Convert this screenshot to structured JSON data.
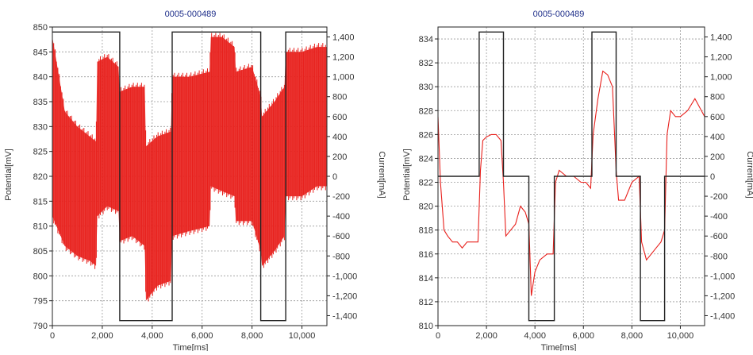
{
  "chart_data": [
    {
      "type": "line",
      "title": "0005-000489",
      "xlabel": "Time[ms]",
      "ylabel": "Potential[mV]",
      "y2label": "Current[mA]",
      "xlim": [
        0,
        11000
      ],
      "ylim": [
        790,
        850
      ],
      "y2lim": [
        -1500,
        1500
      ],
      "x_ticks": [
        0,
        2000,
        4000,
        6000,
        8000,
        10000
      ],
      "x_tick_labels": [
        "0",
        "2,000",
        "4,000",
        "6,000",
        "8,000",
        "10,000"
      ],
      "y_ticks": [
        790,
        795,
        800,
        805,
        810,
        815,
        820,
        825,
        830,
        835,
        840,
        845,
        850
      ],
      "y_tick_labels": [
        "790",
        "795",
        "800",
        "805",
        "810",
        "815",
        "820",
        "825",
        "830",
        "835",
        "840",
        "845",
        "850"
      ],
      "y2_ticks": [
        -1400,
        -1200,
        -1000,
        -800,
        -600,
        -400,
        -200,
        0,
        200,
        400,
        600,
        800,
        1000,
        1200,
        1400
      ],
      "y2_tick_labels": [
        "-1,400",
        "-1,200",
        "-1,000",
        "-800",
        "-600",
        "-400",
        "-200",
        "0",
        "200",
        "400",
        "600",
        "800",
        "1,000",
        "1,200",
        "1,400"
      ],
      "grid": true,
      "colors": {
        "potential": "#e8201c",
        "current": "#222222"
      },
      "series": [
        {
          "axis": "left",
          "color": "#e8201c",
          "style": "oscillating band",
          "x": [
            0,
            500,
            1000,
            1500,
            1750,
            1800,
            2200,
            2650,
            2700,
            3200,
            3700,
            3750,
            4200,
            4750,
            4800,
            5500,
            6300,
            6350,
            6800,
            7300,
            7350,
            8000,
            8350,
            8400,
            8900,
            9300,
            9350,
            10000,
            10600,
            11000
          ],
          "upper": [
            848,
            833,
            830,
            828,
            827,
            843,
            844,
            842,
            837,
            838,
            838,
            826,
            828,
            829,
            840,
            840,
            841,
            848,
            848,
            846,
            841,
            842,
            836,
            832,
            835,
            838,
            845,
            845,
            846,
            846
          ],
          "lower": [
            812,
            806,
            804,
            803,
            802,
            812,
            814,
            813,
            807,
            808,
            806,
            795,
            798,
            799,
            808,
            809,
            810,
            818,
            817,
            816,
            811,
            811,
            805,
            802,
            805,
            808,
            816,
            816,
            818,
            818
          ]
        },
        {
          "axis": "right",
          "color": "#222222",
          "x": [
            0,
            1700,
            1700,
            2700,
            2700,
            3750,
            3750,
            4800,
            4800,
            6350,
            6350,
            7350,
            7350,
            8350,
            8350,
            9350,
            9350,
            11000
          ],
          "y": [
            1450,
            1450,
            1450,
            1450,
            -1450,
            -1450,
            -1450,
            -1450,
            1450,
            1450,
            1450,
            1450,
            1450,
            1450,
            -1450,
            -1450,
            1450,
            1450
          ]
        }
      ]
    },
    {
      "type": "line",
      "title": "0005-000489",
      "xlabel": "Time[ms]",
      "ylabel": "Potential[mV]",
      "y2label": "Current[mA]",
      "xlim": [
        0,
        11000
      ],
      "ylim": [
        810,
        835
      ],
      "y2lim": [
        -1500,
        1500
      ],
      "x_ticks": [
        0,
        2000,
        4000,
        6000,
        8000,
        10000
      ],
      "x_tick_labels": [
        "0",
        "2,000",
        "4,000",
        "6,000",
        "8,000",
        "10,000"
      ],
      "y_ticks": [
        810,
        812,
        814,
        816,
        818,
        820,
        822,
        824,
        826,
        828,
        830,
        832,
        834
      ],
      "y_tick_labels": [
        "810",
        "812",
        "814",
        "816",
        "818",
        "820",
        "822",
        "824",
        "826",
        "828",
        "830",
        "832",
        "834"
      ],
      "y2_ticks": [
        -1400,
        -1200,
        -1000,
        -800,
        -600,
        -400,
        -200,
        0,
        200,
        400,
        600,
        800,
        1000,
        1200,
        1400
      ],
      "y2_tick_labels": [
        "-1,400",
        "-1,200",
        "-1,000",
        "-800",
        "-600",
        "-400",
        "-200",
        "0",
        "200",
        "400",
        "600",
        "800",
        "1,000",
        "1,200",
        "1,400"
      ],
      "grid": true,
      "colors": {
        "potential": "#e8201c",
        "current": "#222222"
      },
      "series": [
        {
          "axis": "left",
          "color": "#e8201c",
          "x": [
            0,
            100,
            250,
            400,
            600,
            800,
            1000,
            1200,
            1400,
            1650,
            1750,
            1850,
            2000,
            2200,
            2400,
            2600,
            2700,
            2800,
            3000,
            3200,
            3400,
            3600,
            3750,
            3850,
            4000,
            4200,
            4500,
            4750,
            4850,
            5000,
            5300,
            5600,
            5900,
            6100,
            6300,
            6400,
            6600,
            6800,
            7000,
            7200,
            7350,
            7450,
            7700,
            8000,
            8300,
            8400,
            8600,
            8800,
            9000,
            9200,
            9350,
            9450,
            9600,
            9800,
            10000,
            10300,
            10600,
            11000
          ],
          "y": [
            827.5,
            822,
            818,
            817.5,
            817,
            817,
            816.5,
            817,
            817,
            817,
            823,
            825.5,
            825.8,
            826,
            826,
            825.5,
            822,
            817.5,
            818,
            818.5,
            820,
            819.5,
            818.5,
            812.5,
            814.5,
            815.5,
            816,
            816,
            822,
            823,
            822.5,
            822.5,
            822,
            822,
            821.5,
            826,
            829,
            831.3,
            831,
            830,
            823,
            820.5,
            820.5,
            822,
            822.5,
            817,
            815.5,
            816,
            816.5,
            817,
            818,
            826,
            828,
            827.5,
            827.5,
            828,
            829,
            827.5
          ]
        },
        {
          "axis": "right",
          "color": "#222222",
          "x": [
            0,
            1700,
            1700,
            2700,
            2700,
            3750,
            3750,
            4800,
            4800,
            6350,
            6350,
            7350,
            7350,
            8350,
            8350,
            9350,
            9350,
            11000
          ],
          "y": [
            0,
            0,
            1450,
            1450,
            0,
            0,
            -1450,
            -1450,
            0,
            0,
            1450,
            1450,
            0,
            0,
            -1450,
            -1450,
            0,
            0
          ]
        }
      ]
    }
  ]
}
